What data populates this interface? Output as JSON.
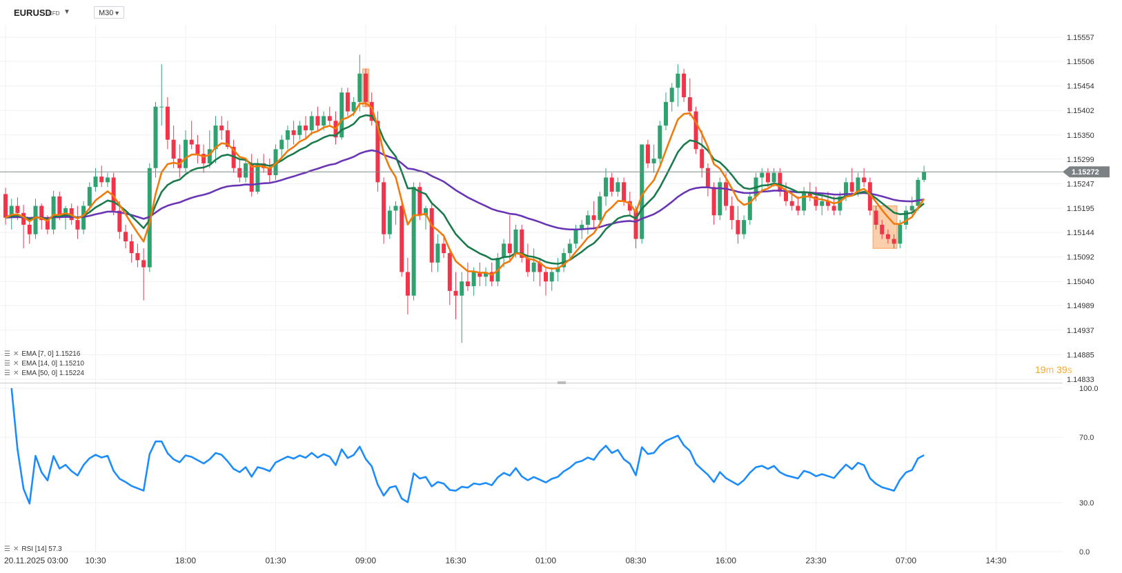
{
  "header": {
    "symbol": "EURUSD",
    "instrument_type": "CFD",
    "timeframe": "M30"
  },
  "indicators": [
    {
      "label": "EMA  [7,  0]  1.15216",
      "color": "#f07a0a"
    },
    {
      "label": "EMA  [14,  0]  1.15210",
      "color": "#1a7a4c"
    },
    {
      "label": "EMA  [50,  0]  1.15224",
      "color": "#6a35b5"
    }
  ],
  "rsi_label": "RSI  [14]  57.3",
  "countdown": {
    "m": "19",
    "m_unit": "m",
    "s": "39",
    "s_unit": "s"
  },
  "last_price": "1.15272",
  "colors": {
    "up": "#2ea36f",
    "down": "#f0344a",
    "ema7": "#f07a0a",
    "ema14": "#1a7a4c",
    "ema50": "#6a35b5",
    "rsi": "#1a8cff",
    "highlight": "#f7a05a"
  },
  "chart_data": [
    {
      "type": "candlestick",
      "price_axis_ticks": [
        "1.15557",
        "1.15506",
        "1.15454",
        "1.15402",
        "1.15350",
        "1.15299",
        "1.15247",
        "1.15195",
        "1.15144",
        "1.15092",
        "1.15040",
        "1.14989",
        "1.14937",
        "1.14885",
        "1.14833"
      ],
      "time_axis_ticks": [
        {
          "label": "20.11.2025  03:00",
          "bar": 0
        },
        {
          "label": "10:30",
          "bar": 15
        },
        {
          "label": "18:00",
          "bar": 30
        },
        {
          "label": "01:30",
          "bar": 45
        },
        {
          "label": "09:00",
          "bar": 60
        },
        {
          "label": "16:30",
          "bar": 75
        },
        {
          "label": "01:00",
          "bar": 90
        },
        {
          "label": "08:30",
          "bar": 105
        },
        {
          "label": "16:00",
          "bar": 120
        },
        {
          "label": "23:30",
          "bar": 135
        },
        {
          "label": "07:00",
          "bar": 150
        },
        {
          "label": "14:30",
          "bar": 165
        }
      ],
      "ylim": [
        1.14833,
        1.15557
      ],
      "current_price": 1.15272,
      "ohlc": [
        [
          1.15225,
          1.15238,
          1.1516,
          1.15175
        ],
        [
          1.15175,
          1.15215,
          1.1515,
          1.152
        ],
        [
          1.152,
          1.15218,
          1.1517,
          1.15185
        ],
        [
          1.15185,
          1.15202,
          1.1511,
          1.1516
        ],
        [
          1.1516,
          1.15175,
          1.1512,
          1.1514
        ],
        [
          1.1514,
          1.15215,
          1.1513,
          1.152
        ],
        [
          1.152,
          1.15205,
          1.1515,
          1.1517
        ],
        [
          1.1517,
          1.1518,
          1.1514,
          1.1515
        ],
        [
          1.1515,
          1.15232,
          1.1514,
          1.1522
        ],
        [
          1.1522,
          1.1523,
          1.1517,
          1.1518
        ],
        [
          1.1518,
          1.152,
          1.1515,
          1.15195
        ],
        [
          1.15195,
          1.15205,
          1.1516,
          1.1517
        ],
        [
          1.1517,
          1.152,
          1.1513,
          1.1515
        ],
        [
          1.1515,
          1.1521,
          1.1514,
          1.152
        ],
        [
          1.152,
          1.1525,
          1.1519,
          1.1524
        ],
        [
          1.1524,
          1.1528,
          1.1523,
          1.15262
        ],
        [
          1.15262,
          1.15285,
          1.1524,
          1.1525
        ],
        [
          1.1525,
          1.1527,
          1.1524,
          1.1526
        ],
        [
          1.1526,
          1.1527,
          1.1518,
          1.1519
        ],
        [
          1.1519,
          1.1521,
          1.1513,
          1.15145
        ],
        [
          1.15145,
          1.1516,
          1.1511,
          1.15125
        ],
        [
          1.15125,
          1.1514,
          1.1508,
          1.151
        ],
        [
          1.151,
          1.1512,
          1.1507,
          1.15085
        ],
        [
          1.15085,
          1.1511,
          1.15,
          1.1507
        ],
        [
          1.1507,
          1.1529,
          1.1506,
          1.1528
        ],
        [
          1.1528,
          1.1542,
          1.1526,
          1.1541
        ],
        [
          1.1541,
          1.155,
          1.1537,
          1.1541
        ],
        [
          1.1541,
          1.1543,
          1.1532,
          1.1534
        ],
        [
          1.1534,
          1.1537,
          1.1528,
          1.153
        ],
        [
          1.153,
          1.1533,
          1.1526,
          1.1528
        ],
        [
          1.1528,
          1.1536,
          1.1527,
          1.1534
        ],
        [
          1.1534,
          1.1538,
          1.1532,
          1.1533
        ],
        [
          1.1533,
          1.1535,
          1.1529,
          1.1531
        ],
        [
          1.1531,
          1.1533,
          1.1527,
          1.1529
        ],
        [
          1.1529,
          1.1536,
          1.1528,
          1.1532
        ],
        [
          1.1532,
          1.1539,
          1.1529,
          1.1537
        ],
        [
          1.1537,
          1.1539,
          1.1534,
          1.1536
        ],
        [
          1.1536,
          1.1538,
          1.1532,
          1.15325
        ],
        [
          1.15325,
          1.1534,
          1.1527,
          1.1528
        ],
        [
          1.1528,
          1.153,
          1.1525,
          1.1526
        ],
        [
          1.1526,
          1.153,
          1.1525,
          1.1529
        ],
        [
          1.1529,
          1.1531,
          1.1522,
          1.1523
        ],
        [
          1.1523,
          1.153,
          1.15225,
          1.1529
        ],
        [
          1.1529,
          1.1531,
          1.1527,
          1.1528
        ],
        [
          1.1528,
          1.153,
          1.1525,
          1.15265
        ],
        [
          1.15265,
          1.1533,
          1.15255,
          1.1532
        ],
        [
          1.1532,
          1.1535,
          1.153,
          1.1534
        ],
        [
          1.1534,
          1.1537,
          1.1532,
          1.1536
        ],
        [
          1.1536,
          1.1538,
          1.1533,
          1.1535
        ],
        [
          1.1535,
          1.1538,
          1.1534,
          1.1537
        ],
        [
          1.1537,
          1.1539,
          1.1534,
          1.1536
        ],
        [
          1.1536,
          1.154,
          1.1535,
          1.1539
        ],
        [
          1.1539,
          1.1541,
          1.1536,
          1.1537
        ],
        [
          1.1537,
          1.154,
          1.1536,
          1.1539
        ],
        [
          1.1539,
          1.1541,
          1.1537,
          1.1538
        ],
        [
          1.1538,
          1.154,
          1.1533,
          1.15345
        ],
        [
          1.15345,
          1.1545,
          1.1534,
          1.1544
        ],
        [
          1.1544,
          1.1545,
          1.1539,
          1.154
        ],
        [
          1.154,
          1.1543,
          1.1539,
          1.1542
        ],
        [
          1.1542,
          1.1552,
          1.154,
          1.1548
        ],
        [
          1.1548,
          1.1549,
          1.1541,
          1.1542
        ],
        [
          1.1542,
          1.1544,
          1.1537,
          1.1538
        ],
        [
          1.1538,
          1.154,
          1.1523,
          1.1525
        ],
        [
          1.1525,
          1.1526,
          1.1512,
          1.1514
        ],
        [
          1.1514,
          1.152,
          1.1513,
          1.1519
        ],
        [
          1.1519,
          1.1521,
          1.1516,
          1.152
        ],
        [
          1.152,
          1.1521,
          1.1505,
          1.1506
        ],
        [
          1.1506,
          1.1509,
          1.1497,
          1.1501
        ],
        [
          1.1501,
          1.1525,
          1.15,
          1.1524
        ],
        [
          1.1524,
          1.1525,
          1.1517,
          1.1518
        ],
        [
          1.1518,
          1.152,
          1.1515,
          1.15195
        ],
        [
          1.15195,
          1.1521,
          1.1506,
          1.1508
        ],
        [
          1.1508,
          1.1514,
          1.1506,
          1.1512
        ],
        [
          1.1512,
          1.1514,
          1.1509,
          1.151
        ],
        [
          1.151,
          1.1511,
          1.1499,
          1.1502
        ],
        [
          1.1502,
          1.1506,
          1.1496,
          1.1501
        ],
        [
          1.1501,
          1.1506,
          1.1491,
          1.1504
        ],
        [
          1.1504,
          1.1508,
          1.1502,
          1.1503
        ],
        [
          1.1503,
          1.1507,
          1.1501,
          1.1506
        ],
        [
          1.1506,
          1.1508,
          1.1503,
          1.1505
        ],
        [
          1.1505,
          1.1507,
          1.1503,
          1.1506
        ],
        [
          1.1506,
          1.1508,
          1.1503,
          1.1504
        ],
        [
          1.1504,
          1.151,
          1.1503,
          1.1509
        ],
        [
          1.1509,
          1.1513,
          1.1507,
          1.1512
        ],
        [
          1.1512,
          1.1518,
          1.1508,
          1.151
        ],
        [
          1.151,
          1.1516,
          1.1509,
          1.1515
        ],
        [
          1.1515,
          1.1516,
          1.1508,
          1.1509
        ],
        [
          1.1509,
          1.1512,
          1.1505,
          1.1506
        ],
        [
          1.1506,
          1.1511,
          1.1504,
          1.1508
        ],
        [
          1.1508,
          1.1509,
          1.1503,
          1.1506
        ],
        [
          1.1506,
          1.1507,
          1.1501,
          1.1504
        ],
        [
          1.1504,
          1.1507,
          1.1502,
          1.1506
        ],
        [
          1.1506,
          1.1509,
          1.1504,
          1.1507
        ],
        [
          1.1507,
          1.1511,
          1.1506,
          1.151
        ],
        [
          1.151,
          1.1513,
          1.1509,
          1.1512
        ],
        [
          1.1512,
          1.1516,
          1.1511,
          1.1515
        ],
        [
          1.1515,
          1.1517,
          1.1513,
          1.1516
        ],
        [
          1.1516,
          1.1519,
          1.1514,
          1.1518
        ],
        [
          1.1518,
          1.1521,
          1.1515,
          1.1517
        ],
        [
          1.1517,
          1.1523,
          1.1516,
          1.1522
        ],
        [
          1.1522,
          1.1528,
          1.152,
          1.1526
        ],
        [
          1.1526,
          1.1527,
          1.1522,
          1.1523
        ],
        [
          1.1523,
          1.1526,
          1.1522,
          1.1525
        ],
        [
          1.1525,
          1.1526,
          1.152,
          1.1521
        ],
        [
          1.1521,
          1.1523,
          1.1518,
          1.1519
        ],
        [
          1.1519,
          1.152,
          1.1511,
          1.1513
        ],
        [
          1.1513,
          1.1533,
          1.1512,
          1.1533
        ],
        [
          1.1533,
          1.1534,
          1.1528,
          1.1529
        ],
        [
          1.1529,
          1.1533,
          1.1527,
          1.153
        ],
        [
          1.153,
          1.1538,
          1.1529,
          1.1537
        ],
        [
          1.1537,
          1.1544,
          1.1536,
          1.1542
        ],
        [
          1.1542,
          1.1546,
          1.154,
          1.1545
        ],
        [
          1.1545,
          1.155,
          1.1541,
          1.1548
        ],
        [
          1.1548,
          1.1549,
          1.1542,
          1.1543
        ],
        [
          1.1543,
          1.1547,
          1.1539,
          1.154
        ],
        [
          1.154,
          1.1541,
          1.1531,
          1.1532
        ],
        [
          1.1532,
          1.1536,
          1.1526,
          1.1528
        ],
        [
          1.1528,
          1.1529,
          1.1522,
          1.1524
        ],
        [
          1.1524,
          1.1525,
          1.1516,
          1.1518
        ],
        [
          1.1518,
          1.1526,
          1.1517,
          1.1525
        ],
        [
          1.1525,
          1.1527,
          1.1519,
          1.152
        ],
        [
          1.152,
          1.1522,
          1.1515,
          1.1517
        ],
        [
          1.1517,
          1.152,
          1.1512,
          1.1514
        ],
        [
          1.1514,
          1.1518,
          1.1513,
          1.1517
        ],
        [
          1.1517,
          1.1523,
          1.1516,
          1.1522
        ],
        [
          1.1522,
          1.1527,
          1.1521,
          1.1526
        ],
        [
          1.1526,
          1.1528,
          1.1523,
          1.1527
        ],
        [
          1.1527,
          1.1528,
          1.1524,
          1.1525
        ],
        [
          1.1525,
          1.1528,
          1.1524,
          1.1527
        ],
        [
          1.1527,
          1.1528,
          1.1522,
          1.1523
        ],
        [
          1.1523,
          1.1525,
          1.152,
          1.1521
        ],
        [
          1.1521,
          1.1523,
          1.1519,
          1.152
        ],
        [
          1.152,
          1.1522,
          1.1518,
          1.1519
        ],
        [
          1.1519,
          1.1524,
          1.1518,
          1.1523
        ],
        [
          1.1523,
          1.1525,
          1.1521,
          1.1522
        ],
        [
          1.1522,
          1.1524,
          1.1519,
          1.152
        ],
        [
          1.152,
          1.1522,
          1.1518,
          1.1521
        ],
        [
          1.1521,
          1.1523,
          1.1519,
          1.152
        ],
        [
          1.152,
          1.1522,
          1.1518,
          1.1519
        ],
        [
          1.1519,
          1.1523,
          1.1518,
          1.1522
        ],
        [
          1.1522,
          1.1526,
          1.1521,
          1.1525
        ],
        [
          1.1525,
          1.1528,
          1.1522,
          1.1523
        ],
        [
          1.1523,
          1.1527,
          1.1522,
          1.1526
        ],
        [
          1.1526,
          1.1528,
          1.1524,
          1.1525
        ],
        [
          1.1525,
          1.1526,
          1.1518,
          1.1519
        ],
        [
          1.1519,
          1.152,
          1.1515,
          1.1516
        ],
        [
          1.1516,
          1.1517,
          1.1513,
          1.1514
        ],
        [
          1.1514,
          1.1515,
          1.1512,
          1.1513
        ],
        [
          1.1513,
          1.1514,
          1.1511,
          1.1512
        ],
        [
          1.1512,
          1.1517,
          1.1511,
          1.1516
        ],
        [
          1.1516,
          1.152,
          1.1515,
          1.1519
        ],
        [
          1.1519,
          1.1522,
          1.1518,
          1.152
        ],
        [
          1.152,
          1.1526,
          1.1519,
          1.15255
        ],
        [
          1.15255,
          1.15285,
          1.1525,
          1.15272
        ]
      ],
      "highlight_zones": [
        {
          "from_bar": 59.5,
          "to_bar": 60.5
        },
        {
          "from_bar": 144.5,
          "to_bar": 148.5
        }
      ]
    },
    {
      "type": "line",
      "title": "RSI",
      "ylim": [
        0,
        100
      ],
      "y_ticks": [
        "100.0",
        "70.0",
        "30.0",
        "0.0"
      ],
      "grid": true
    }
  ]
}
